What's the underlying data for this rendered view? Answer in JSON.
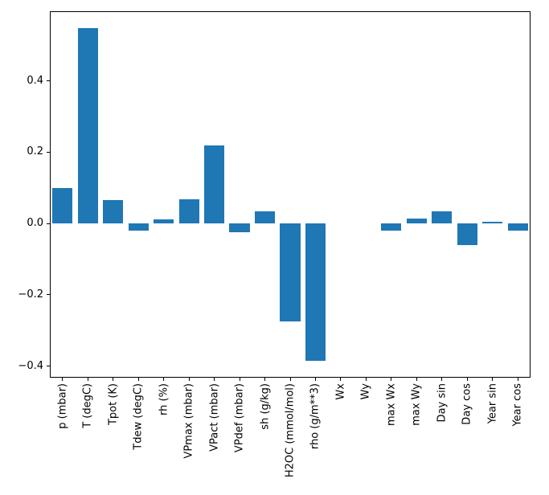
{
  "figure": {
    "background": "#ffffff",
    "bar_color": "#1f77b4",
    "axis_color": "#000000"
  },
  "chart_data": {
    "type": "bar",
    "title": "",
    "xlabel": "",
    "ylabel": "",
    "categories": [
      "p (mbar)",
      "T (degC)",
      "Tpot (K)",
      "Tdew (degC)",
      "rh (%)",
      "VPmax (mbar)",
      "VPact (mbar)",
      "VPdef (mbar)",
      "sh (g/kg)",
      "H2OC (mmol/mol)",
      "rho (g/m**3)",
      "Wx",
      "Wy",
      "max Wx",
      "max Wy",
      "Day sin",
      "Day cos",
      "Year sin",
      "Year cos"
    ],
    "values": [
      0.1,
      0.548,
      0.065,
      -0.02,
      0.012,
      0.068,
      0.218,
      -0.025,
      0.035,
      -0.275,
      -0.385,
      0.0,
      0.0,
      -0.02,
      0.015,
      0.035,
      -0.06,
      0.004,
      -0.02
    ],
    "ylim": [
      -0.432,
      0.595
    ],
    "yticks": [
      -0.4,
      -0.2,
      0.0,
      0.2,
      0.4
    ],
    "ytick_labels": [
      "−0.4",
      "−0.2",
      "0.0",
      "0.2",
      "0.4"
    ],
    "x_tick_rotation": 90,
    "grid": false,
    "legend": null
  }
}
